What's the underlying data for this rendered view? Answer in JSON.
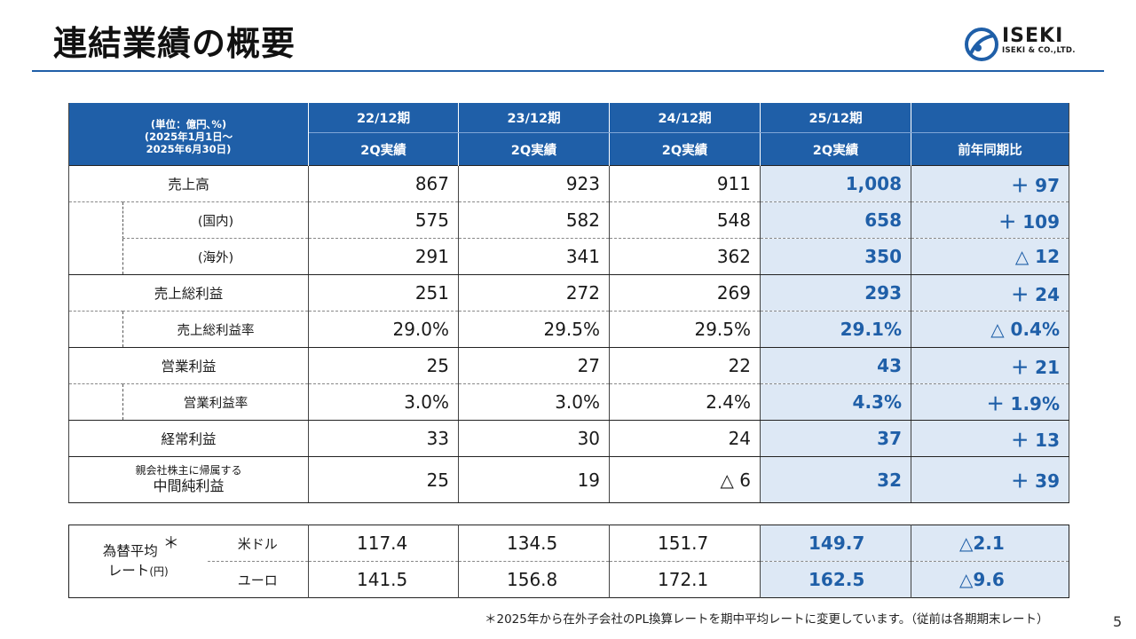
{
  "page": {
    "title": "連結業績の概要",
    "page_number": "5"
  },
  "logo": {
    "word": "ISEKI",
    "sub": "ISEKI & CO.,LTD."
  },
  "header": {
    "unit_line1": "(単位：億円､%)",
    "unit_line2": "(2025年1月1日～",
    "unit_line3": "2025年6月30日)",
    "periods": [
      "22/12期",
      "23/12期",
      "24/12期",
      "25/12期"
    ],
    "sub": [
      "2Q実績",
      "2Q実績",
      "2Q実績",
      "2Q実績"
    ],
    "yoy": "前年同期比"
  },
  "rows": [
    {
      "label": "売上高",
      "values": [
        "867",
        "923",
        "911",
        "1,008"
      ],
      "yoy": "＋ 97"
    },
    {
      "label": "(国内)",
      "values": [
        "575",
        "582",
        "548",
        "658"
      ],
      "yoy": "＋ 109"
    },
    {
      "label": "(海外)",
      "values": [
        "291",
        "341",
        "362",
        "350"
      ],
      "yoy": "△ 12"
    },
    {
      "label": "売上総利益",
      "values": [
        "251",
        "272",
        "269",
        "293"
      ],
      "yoy": "＋ 24"
    },
    {
      "label": "売上総利益率",
      "values": [
        "29.0%",
        "29.5%",
        "29.5%",
        "29.1%"
      ],
      "yoy": "△ 0.4%"
    },
    {
      "label": "営業利益",
      "values": [
        "25",
        "27",
        "22",
        "43"
      ],
      "yoy": "＋ 21"
    },
    {
      "label": "営業利益率",
      "values": [
        "3.0%",
        "3.0%",
        "2.4%",
        "4.3%"
      ],
      "yoy": "＋ 1.9%"
    },
    {
      "label": "経常利益",
      "values": [
        "33",
        "30",
        "24",
        "37"
      ],
      "yoy": "＋ 13"
    },
    {
      "label_small": "親会社株主に帰属する",
      "label": "中間純利益",
      "values": [
        "25",
        "19",
        "△ 6",
        "32"
      ],
      "yoy": "＋ 39"
    }
  ],
  "fx": {
    "label_line1": "為替平均",
    "asterisk": "＊",
    "label_line2": "レート",
    "label_unit": "(円)",
    "rows": [
      {
        "currency": "米ドル",
        "values": [
          "117.4",
          "134.5",
          "151.7",
          "149.7"
        ],
        "yoy": "△2.1"
      },
      {
        "currency": "ユーロ",
        "values": [
          "141.5",
          "156.8",
          "172.1",
          "162.5"
        ],
        "yoy": "△9.6"
      }
    ]
  },
  "footnote": "＊2025年から在外子会社のPL換算レートを期中平均レートに変更しています。（従前は各期期末レート）",
  "colors": {
    "accent": "#1f5fa8",
    "highlight_bg": "#dde8f5"
  }
}
